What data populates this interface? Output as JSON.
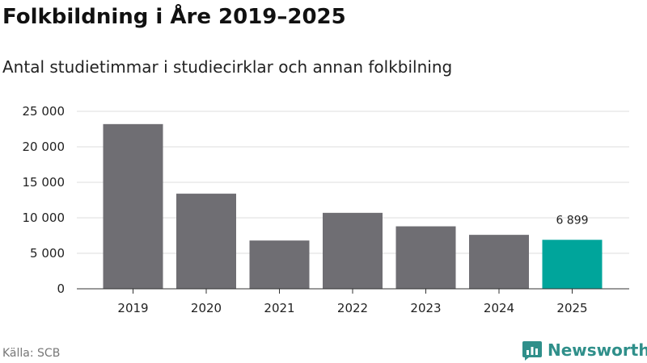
{
  "header": {
    "title": "Folkbildning i Åre 2019–2025",
    "subtitle": "Antal studietimmar i studiecirklar och annan folkbilning"
  },
  "footer": {
    "source": "Källa: SCB",
    "brand": "Newsworthy"
  },
  "colors": {
    "bar": "#6f6e73",
    "highlight": "#00a59b",
    "grid": "#dddddd",
    "axis": "#333333",
    "brand": "#2f8f8a"
  },
  "chart_data": {
    "type": "bar",
    "categories": [
      "2019",
      "2020",
      "2021",
      "2022",
      "2023",
      "2024",
      "2025"
    ],
    "values": [
      23200,
      13400,
      6800,
      10700,
      8800,
      7600,
      6899
    ],
    "highlight_index": 6,
    "data_labels": [
      {
        "category": "2025",
        "text": "6 899"
      }
    ],
    "yticks": [
      {
        "value": 0,
        "label": "0"
      },
      {
        "value": 5000,
        "label": "5 000"
      },
      {
        "value": 10000,
        "label": "10 000"
      },
      {
        "value": 15000,
        "label": "15 000"
      },
      {
        "value": 20000,
        "label": "20 000"
      },
      {
        "value": 25000,
        "label": "25 000"
      }
    ],
    "ylim": [
      0,
      25000
    ],
    "grid": true,
    "legend": "none"
  }
}
